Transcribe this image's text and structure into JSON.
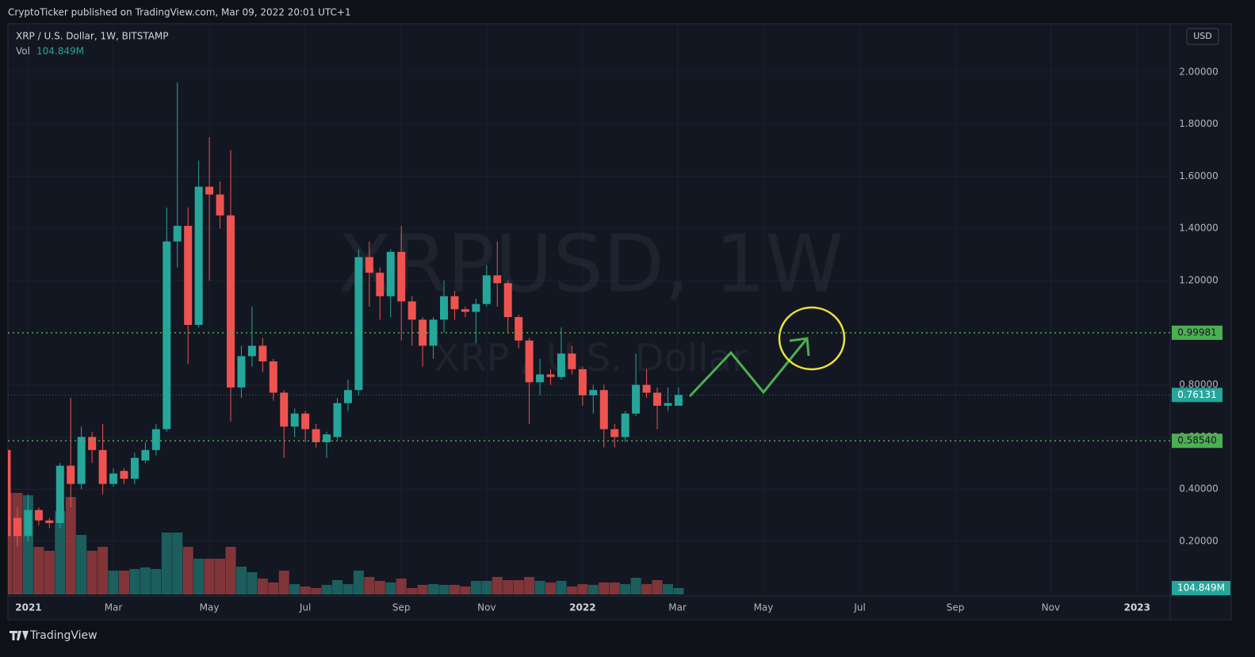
{
  "header": {
    "publisher": "CryptoTicker published on TradingView.com, Mar 09, 2022 20:01 UTC+1"
  },
  "chart_data": {
    "type": "candlestick",
    "title": "XRP / U.S. Dollar, 1W, BITSTAMP",
    "watermark": "XRPUSD, 1W",
    "watermark_subtitle": "XRP / U.S. Dollar",
    "currency": "USD",
    "volume_title": "Vol",
    "last_volume_label": "104.849M",
    "up_color": "#26a69a",
    "down_color": "#ef5350",
    "level_color": "#4caf50",
    "grid": true,
    "categories": [
      null,
      null,
      null,
      null,
      null,
      null,
      null,
      null,
      null,
      null,
      null,
      null,
      null,
      null,
      null,
      null,
      null,
      null,
      null,
      null,
      null,
      null,
      null,
      null,
      null,
      null,
      null,
      null,
      null,
      null,
      null,
      null,
      null,
      null,
      null,
      null,
      null,
      null,
      null,
      null,
      null,
      null,
      null,
      null,
      null,
      null,
      null,
      null,
      null,
      null,
      null,
      null,
      null,
      null,
      null,
      null,
      null,
      null,
      null,
      null,
      null,
      null,
      null,
      null
    ],
    "open": [
      0.55,
      0.29,
      0.22,
      0.32,
      0.28,
      0.27,
      0.49,
      0.42,
      0.6,
      0.55,
      0.42,
      0.47,
      0.44,
      0.51,
      0.55,
      0.63,
      1.35,
      1.41,
      1.03,
      1.56,
      1.53,
      1.45,
      0.79,
      0.91,
      0.95,
      0.89,
      0.77,
      0.64,
      0.69,
      0.63,
      0.58,
      0.6,
      0.73,
      0.78,
      1.29,
      1.23,
      1.14,
      1.31,
      1.12,
      1.05,
      0.95,
      1.05,
      1.14,
      1.09,
      1.08,
      1.11,
      1.22,
      1.19,
      1.06,
      0.97,
      0.81,
      0.84,
      0.83,
      0.92,
      0.86,
      0.76,
      0.78,
      0.63,
      0.6,
      0.69,
      0.8,
      0.77,
      0.72,
      0.72
    ],
    "high": [
      0.58,
      0.33,
      0.38,
      0.33,
      0.29,
      0.5,
      0.75,
      0.64,
      0.62,
      0.65,
      0.48,
      0.48,
      0.54,
      0.58,
      0.65,
      1.48,
      1.96,
      1.48,
      1.66,
      1.75,
      1.58,
      1.7,
      0.95,
      1.1,
      0.98,
      0.9,
      0.78,
      0.71,
      0.7,
      0.65,
      0.62,
      0.75,
      0.82,
      1.32,
      1.35,
      1.25,
      1.32,
      1.41,
      1.14,
      1.06,
      1.06,
      1.2,
      1.16,
      1.1,
      1.13,
      1.26,
      1.35,
      1.2,
      1.07,
      0.98,
      0.9,
      0.86,
      1.02,
      0.95,
      0.87,
      0.8,
      0.8,
      0.65,
      0.7,
      0.92,
      0.86,
      0.79,
      0.79,
      0.79
    ],
    "low": [
      0.2,
      0.18,
      0.2,
      0.26,
      0.25,
      0.25,
      0.33,
      0.4,
      0.5,
      0.38,
      0.41,
      0.42,
      0.42,
      0.5,
      0.53,
      0.62,
      1.25,
      0.88,
      1.02,
      1.2,
      1.4,
      0.66,
      0.75,
      0.87,
      0.85,
      0.74,
      0.52,
      0.6,
      0.58,
      0.56,
      0.52,
      0.59,
      0.7,
      0.76,
      1.1,
      1.05,
      1.06,
      0.97,
      0.95,
      0.87,
      0.9,
      1.0,
      1.05,
      1.06,
      0.96,
      1.1,
      1.1,
      1.0,
      0.94,
      0.65,
      0.76,
      0.8,
      0.82,
      0.84,
      0.72,
      0.69,
      0.56,
      0.56,
      0.58,
      0.68,
      0.75,
      0.63,
      0.7,
      0.72
    ],
    "close": [
      0.22,
      0.22,
      0.32,
      0.28,
      0.27,
      0.49,
      0.42,
      0.6,
      0.55,
      0.42,
      0.46,
      0.44,
      0.52,
      0.55,
      0.63,
      1.35,
      1.41,
      1.03,
      1.56,
      1.53,
      1.45,
      0.79,
      0.91,
      0.95,
      0.89,
      0.77,
      0.64,
      0.69,
      0.63,
      0.58,
      0.61,
      0.73,
      0.78,
      1.29,
      1.23,
      1.14,
      1.31,
      1.12,
      1.05,
      0.95,
      1.05,
      1.14,
      1.09,
      1.08,
      1.11,
      1.22,
      1.19,
      1.06,
      0.97,
      0.81,
      0.84,
      0.83,
      0.92,
      0.86,
      0.76,
      0.78,
      0.63,
      0.6,
      0.69,
      0.8,
      0.77,
      0.72,
      0.73,
      0.76131
    ],
    "volume": [
      1677,
      1677,
      1638,
      786,
      721,
      1376,
      1611,
      983,
      721,
      786,
      393,
      393,
      419,
      445,
      419,
      1022,
      1022,
      786,
      590,
      590,
      590,
      786,
      459,
      367,
      262,
      197,
      393,
      170,
      131,
      105,
      157,
      236,
      170,
      393,
      288,
      223,
      197,
      262,
      105,
      157,
      170,
      157,
      157,
      131,
      223,
      223,
      288,
      236,
      236,
      288,
      223,
      197,
      223,
      131,
      170,
      157,
      197,
      197,
      170,
      275,
      170,
      236,
      170,
      104.849
    ],
    "xlim": [
      0.11,
      109.1
    ],
    "xticks": [
      {
        "value": 2.04,
        "label": "2021"
      },
      {
        "value": 10.0,
        "label": "Mar"
      },
      {
        "value": 19.0,
        "label": "May"
      },
      {
        "value": 28.0,
        "label": "Jul"
      },
      {
        "value": 37.0,
        "label": "Sep"
      },
      {
        "value": 45.0,
        "label": "Nov"
      },
      {
        "value": 54.0,
        "label": "2022"
      },
      {
        "value": 62.9,
        "label": "Mar"
      },
      {
        "value": 70.96,
        "label": "May"
      },
      {
        "value": 80.0,
        "label": "Jul"
      },
      {
        "value": 88.96,
        "label": "Sep"
      },
      {
        "value": 97.9,
        "label": "Nov"
      },
      {
        "value": 106.0,
        "label": "2023"
      }
    ],
    "ylim": [
      0,
      2.18
    ],
    "yticks": [
      {
        "value": 0.2,
        "label": "0.20000"
      },
      {
        "value": 0.4,
        "label": "0.40000"
      },
      {
        "value": 0.6,
        "label": "0.60000"
      },
      {
        "value": 0.8,
        "label": "0.80000"
      },
      {
        "value": 1.2,
        "label": "1.20000"
      },
      {
        "value": 1.4,
        "label": "1.40000"
      },
      {
        "value": 1.6,
        "label": "1.60000"
      },
      {
        "value": 1.8,
        "label": "1.80000"
      },
      {
        "value": 2.0,
        "label": "2.00000"
      }
    ],
    "levels": [
      0.99981,
      {
        "value": 0.5854,
        "label": "0.58540"
      }
    ]
  },
  "footer": {
    "brand": "TradingView"
  }
}
